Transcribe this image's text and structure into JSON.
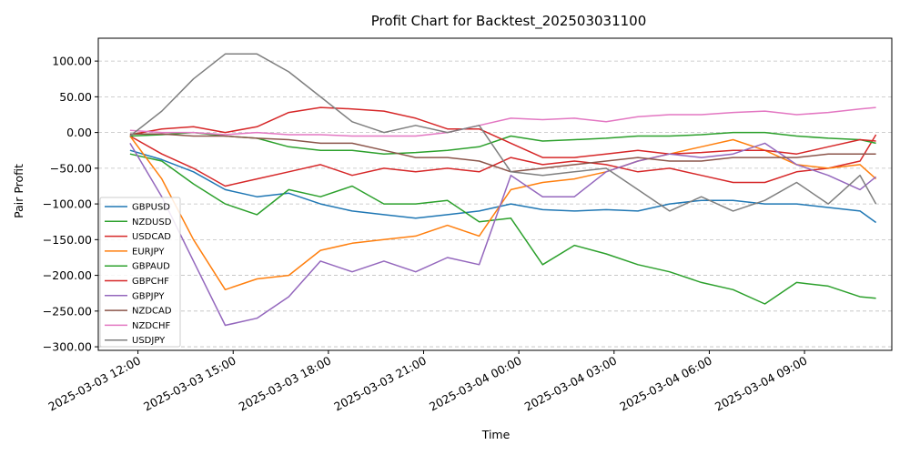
{
  "chart_data": {
    "type": "line",
    "title": "Profit Chart for Backtest_202503031100",
    "xlabel": "Time",
    "ylabel": "Pair Profit",
    "ylim": [
      -305,
      132
    ],
    "yticks": [
      100,
      50,
      0,
      -50,
      -100,
      -150,
      -200,
      -250,
      -300
    ],
    "ytick_labels": [
      "100.00",
      "50.00",
      "0.00",
      "−50.00",
      "−100.00",
      "−150.00",
      "−200.00",
      "−250.00",
      "−300.00"
    ],
    "xlim": [
      "2025-03-03 10:45",
      "2025-03-04 11:45"
    ],
    "xticks": [
      "2025-03-03 12:00",
      "2025-03-03 15:00",
      "2025-03-03 18:00",
      "2025-03-03 21:00",
      "2025-03-04 00:00",
      "2025-03-04 03:00",
      "2025-03-04 06:00",
      "2025-03-04 09:00"
    ],
    "xtick_labels": [
      "2025-03-03 12:00",
      "2025-03-03 15:00",
      "2025-03-03 18:00",
      "2025-03-03 21:00",
      "2025-03-04 00:00",
      "2025-03-04 03:00",
      "2025-03-04 06:00",
      "2025-03-04 09:00"
    ],
    "grid": "horizontal dashed",
    "legend_position": "lower-left",
    "x": [
      "2025-03-03 11:45",
      "2025-03-03 12:45",
      "2025-03-03 13:45",
      "2025-03-03 14:45",
      "2025-03-03 15:45",
      "2025-03-03 16:45",
      "2025-03-03 17:45",
      "2025-03-03 18:45",
      "2025-03-03 19:45",
      "2025-03-03 20:45",
      "2025-03-03 21:45",
      "2025-03-03 22:45",
      "2025-03-03 23:45",
      "2025-03-04 00:45",
      "2025-03-04 01:45",
      "2025-03-04 02:45",
      "2025-03-04 03:45",
      "2025-03-04 04:45",
      "2025-03-04 05:45",
      "2025-03-04 06:45",
      "2025-03-04 07:45",
      "2025-03-04 08:45",
      "2025-03-04 09:45",
      "2025-03-04 10:45",
      "2025-03-04 11:15"
    ],
    "series": [
      {
        "name": "GBPUSD",
        "color": "#1f77b4",
        "values": [
          -25,
          -38,
          -55,
          -80,
          -90,
          -85,
          -100,
          -110,
          -115,
          -120,
          -115,
          -110,
          -100,
          -108,
          -110,
          -108,
          -110,
          -100,
          -95,
          -95,
          -100,
          -100,
          -105,
          -110,
          -126
        ]
      },
      {
        "name": "NZDUSD",
        "color": "#2ca02c",
        "values": [
          -30,
          -40,
          -72,
          -100,
          -115,
          -80,
          -90,
          -75,
          -100,
          -100,
          -95,
          -125,
          -120,
          -185,
          -158,
          -170,
          -185,
          -195,
          -210,
          -220,
          -240,
          -210,
          -215,
          -230,
          -232
        ]
      },
      {
        "name": "USDCAD",
        "color": "#d62728",
        "values": [
          -5,
          -30,
          -50,
          -75,
          -65,
          -55,
          -45,
          -60,
          -50,
          -55,
          -50,
          -55,
          -35,
          -45,
          -40,
          -45,
          -55,
          -50,
          -60,
          -70,
          -70,
          -55,
          -50,
          -40,
          -3
        ]
      },
      {
        "name": "EURJPY",
        "color": "#ff7f0e",
        "values": [
          -5,
          -65,
          -150,
          -220,
          -205,
          -200,
          -165,
          -155,
          -150,
          -145,
          -130,
          -145,
          -80,
          -70,
          -65,
          -55,
          -40,
          -30,
          -20,
          -10,
          -25,
          -45,
          -50,
          -45,
          -65
        ]
      },
      {
        "name": "GBPAUD",
        "color": "#2ca02c",
        "values": [
          -5,
          -3,
          0,
          -5,
          -8,
          -20,
          -25,
          -25,
          -30,
          -28,
          -25,
          -20,
          -5,
          -12,
          -10,
          -8,
          -5,
          -5,
          -3,
          0,
          0,
          -5,
          -8,
          -10,
          -15
        ]
      },
      {
        "name": "GBPCHF",
        "color": "#d62728",
        "values": [
          -3,
          5,
          8,
          0,
          8,
          28,
          35,
          33,
          30,
          20,
          5,
          5,
          -15,
          -35,
          -35,
          -30,
          -25,
          -30,
          -28,
          -25,
          -25,
          -30,
          -20,
          -10,
          -12
        ]
      },
      {
        "name": "GBPJPY",
        "color": "#9467bd",
        "values": [
          -15,
          -90,
          -180,
          -270,
          -260,
          -230,
          -180,
          -195,
          -180,
          -195,
          -175,
          -185,
          -60,
          -90,
          -90,
          -55,
          -40,
          -30,
          -35,
          -30,
          -15,
          -45,
          -60,
          -80,
          -62
        ]
      },
      {
        "name": "NZDCAD",
        "color": "#8c564b",
        "values": [
          -2,
          -2,
          -5,
          -5,
          -8,
          -10,
          -15,
          -15,
          -25,
          -35,
          -35,
          -40,
          -55,
          -50,
          -45,
          -40,
          -35,
          -40,
          -40,
          -35,
          -35,
          -35,
          -30,
          -30,
          -30
        ]
      },
      {
        "name": "NZDCHF",
        "color": "#e377c2",
        "values": [
          3,
          0,
          0,
          -3,
          0,
          -3,
          -3,
          -5,
          -5,
          -5,
          0,
          10,
          20,
          18,
          20,
          15,
          22,
          25,
          25,
          28,
          30,
          25,
          28,
          33,
          35
        ]
      },
      {
        "name": "USDJPY",
        "color": "#7f7f7f",
        "values": [
          -5,
          30,
          75,
          110,
          110,
          85,
          50,
          15,
          0,
          10,
          0,
          10,
          -55,
          -60,
          -55,
          -50,
          -80,
          -110,
          -90,
          -110,
          -95,
          -70,
          -100,
          -60,
          -100
        ]
      }
    ]
  }
}
